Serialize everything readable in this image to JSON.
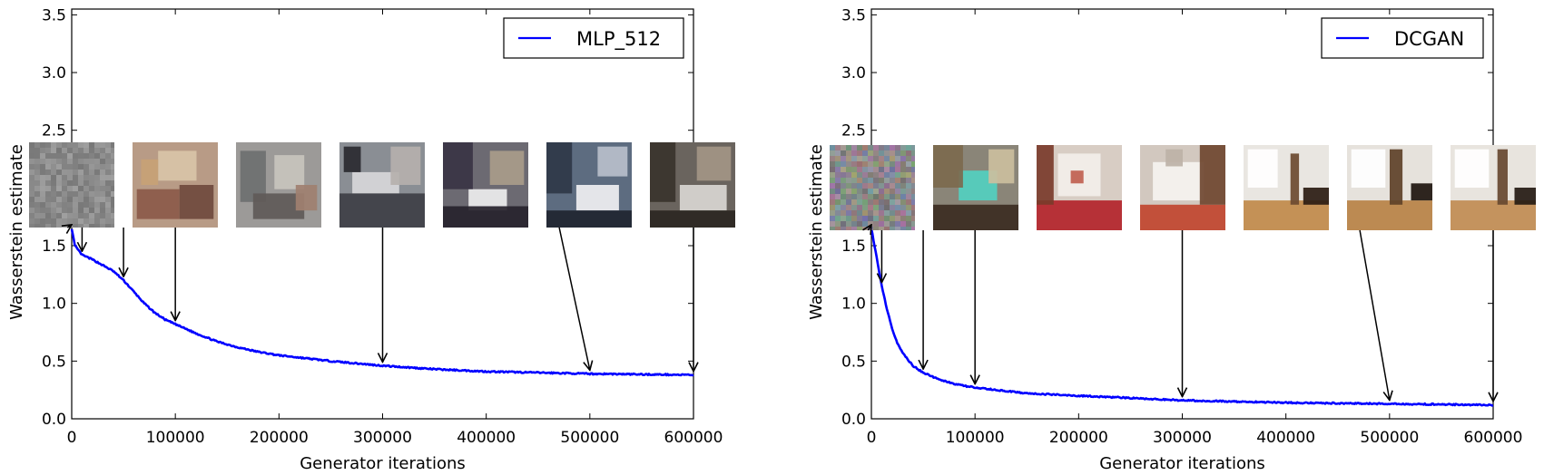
{
  "chart_data": [
    {
      "type": "line",
      "xlabel": "Generator iterations",
      "ylabel": "Wasserstein estimate",
      "xlim": [
        0,
        600000
      ],
      "ylim": [
        0,
        3.55
      ],
      "xticks": [
        0,
        100000,
        200000,
        300000,
        400000,
        500000,
        600000
      ],
      "xtick_labels": [
        "0",
        "100000",
        "200000",
        "300000",
        "400000",
        "500000",
        "600000"
      ],
      "yticks": [
        0.0,
        0.5,
        1.0,
        1.5,
        2.0,
        2.5,
        3.0,
        3.5
      ],
      "ytick_labels": [
        "0.0",
        "0.5",
        "1.0",
        "1.5",
        "2.0",
        "2.5",
        "3.0",
        "3.5"
      ],
      "legend_position": "top-right",
      "series": [
        {
          "name": "MLP_512",
          "color": "#0000ff",
          "x": [
            0,
            3000,
            10000,
            20000,
            30000,
            40000,
            50000,
            60000,
            70000,
            80000,
            90000,
            100000,
            120000,
            140000,
            160000,
            180000,
            200000,
            250000,
            300000,
            350000,
            400000,
            450000,
            500000,
            550000,
            600000
          ],
          "y": [
            1.65,
            1.5,
            1.42,
            1.38,
            1.33,
            1.28,
            1.2,
            1.1,
            1.0,
            0.92,
            0.86,
            0.82,
            0.74,
            0.67,
            0.62,
            0.58,
            0.55,
            0.5,
            0.46,
            0.43,
            0.41,
            0.4,
            0.39,
            0.385,
            0.38
          ]
        }
      ],
      "snapshot_iterations": [
        0,
        10000,
        50000,
        100000,
        300000,
        500000,
        600000
      ],
      "snapshot_style": [
        "gray-noise",
        "abstract-warm",
        "abstract-gray",
        "room-blocky",
        "room-bed",
        "room-bed-blue",
        "room-bed-dark"
      ]
    },
    {
      "type": "line",
      "xlabel": "Generator iterations",
      "ylabel": "Wasserstein estimate",
      "xlim": [
        0,
        600000
      ],
      "ylim": [
        0,
        3.55
      ],
      "xticks": [
        0,
        100000,
        200000,
        300000,
        400000,
        500000,
        600000
      ],
      "xtick_labels": [
        "0",
        "100000",
        "200000",
        "300000",
        "400000",
        "500000",
        "600000"
      ],
      "yticks": [
        0.0,
        0.5,
        1.0,
        1.5,
        2.0,
        2.5,
        3.0,
        3.5
      ],
      "ytick_labels": [
        "0.0",
        "0.5",
        "1.0",
        "1.5",
        "2.0",
        "2.5",
        "3.0",
        "3.5"
      ],
      "legend_position": "top-right",
      "series": [
        {
          "name": "DCGAN",
          "color": "#0000ff",
          "x": [
            0,
            3000,
            6000,
            10000,
            15000,
            20000,
            25000,
            30000,
            40000,
            50000,
            60000,
            80000,
            100000,
            150000,
            200000,
            250000,
            300000,
            350000,
            400000,
            450000,
            500000,
            550000,
            600000
          ],
          "y": [
            1.65,
            1.5,
            1.35,
            1.15,
            0.95,
            0.78,
            0.66,
            0.57,
            0.46,
            0.4,
            0.36,
            0.3,
            0.27,
            0.22,
            0.2,
            0.18,
            0.16,
            0.15,
            0.14,
            0.135,
            0.13,
            0.125,
            0.12
          ]
        }
      ],
      "snapshot_iterations": [
        0,
        10000,
        50000,
        100000,
        300000,
        500000,
        600000
      ],
      "snapshot_style": [
        "color-noise",
        "room-cyan",
        "room-red",
        "room-red-white",
        "room-window",
        "room-window-2",
        "room-window-3"
      ]
    }
  ]
}
